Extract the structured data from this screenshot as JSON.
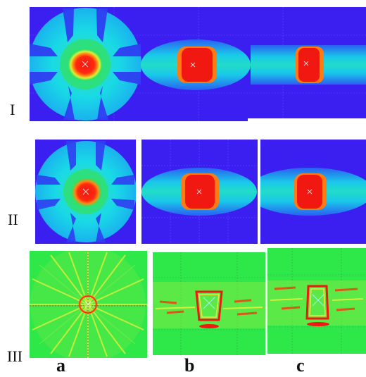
{
  "row_labels": [
    "I",
    "II",
    "III"
  ],
  "column_labels": [
    "a",
    "b",
    "c"
  ],
  "colors": {
    "background_blue": "#3b1ff0",
    "cyan": "#19d9e6",
    "green": "#2fe06a",
    "yellow": "#e5ef3a",
    "orange": "#ff7a12",
    "red": "#f01810",
    "field_green": "#2ee84a",
    "grid": "#7a7aff"
  }
}
